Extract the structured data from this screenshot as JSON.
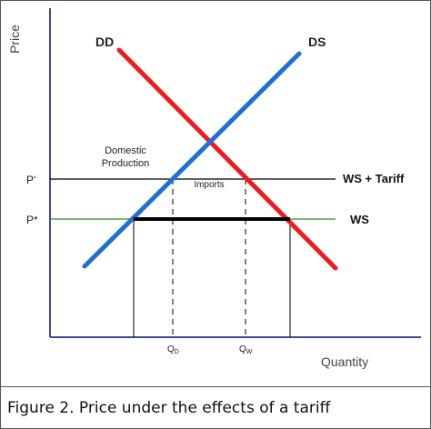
{
  "diagram": {
    "y_axis_label": "Price",
    "x_axis_label": "Quantity",
    "demand_label": "DD",
    "supply_label": "DS",
    "price_tariff_label": "P'",
    "price_world_label": "P*",
    "tariff_line_label": "WS + Tariff",
    "world_line_label": "WS",
    "domestic_production_label_line1": "Domestic",
    "domestic_production_label_line2": "Production",
    "imports_label": "Imports",
    "q_domestic_label": "QD",
    "q_world_label": "QW",
    "colors": {
      "demand": "#ee1c1c",
      "supply": "#1f6fd6",
      "world_supply": "#2e8b2e",
      "tariff_line": "#000000",
      "axis": "#3d4a9a"
    }
  },
  "caption": "Figure 2. Price under the effects of a tariff"
}
